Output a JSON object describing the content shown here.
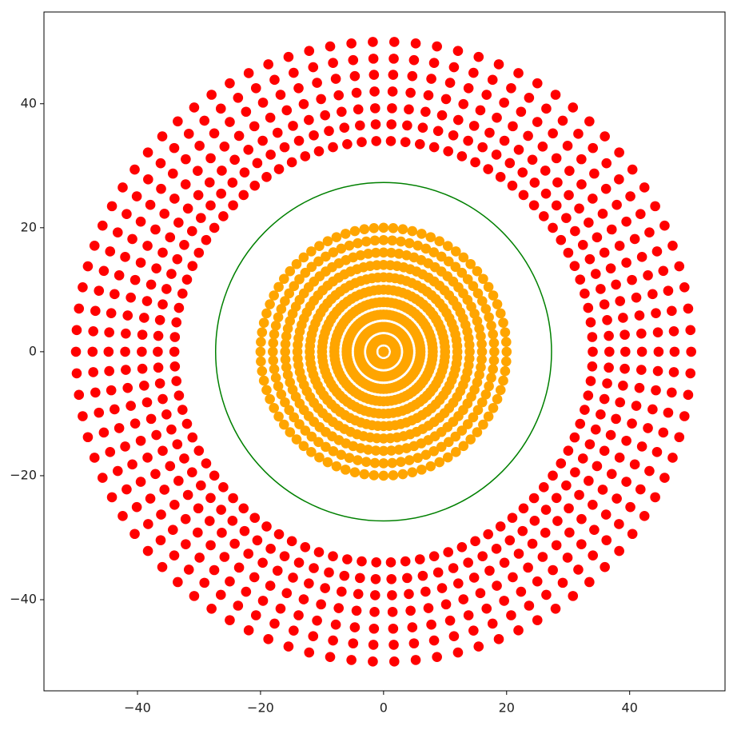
{
  "chart_data": {
    "type": "polar-scatter",
    "xlim": [
      -55.2,
      55.5
    ],
    "ylim": [
      -54.7,
      54.8
    ],
    "xticks": [
      {
        "value": -40,
        "label": "−40"
      },
      {
        "value": -20,
        "label": "−20"
      },
      0,
      20,
      40
    ],
    "yticks": [
      {
        "value": -40,
        "label": "−40"
      },
      {
        "value": -20,
        "label": "−20"
      },
      0,
      20,
      40
    ],
    "series": [
      {
        "color": "#ff0000",
        "r": [
          34,
          36.7,
          39.3,
          42,
          44.7,
          47.3,
          50
        ],
        "theta": [
          0,
          4,
          8,
          12,
          16,
          20,
          24,
          28,
          32,
          36,
          40,
          44,
          48,
          52,
          56,
          60,
          64,
          68,
          72,
          76,
          80,
          84,
          88,
          92,
          96,
          100,
          104,
          108,
          112,
          116,
          120,
          124,
          128,
          132,
          136,
          140,
          144,
          148,
          152,
          156,
          160,
          164,
          168,
          172,
          176,
          180,
          184,
          188,
          192,
          196,
          200,
          204,
          208,
          212,
          216,
          220,
          224,
          228,
          232,
          236,
          240,
          244,
          248,
          252,
          256,
          260,
          264,
          268,
          272,
          276,
          280,
          284,
          288,
          292,
          296,
          300,
          304,
          308,
          312,
          316,
          320,
          324,
          328,
          332,
          336,
          340,
          344,
          348,
          352,
          356
        ]
      },
      {
        "color": "#ffa500",
        "r": [
          0,
          2,
          4,
          6,
          8,
          10,
          12,
          14,
          16,
          18,
          20
        ],
        "theta": [
          0,
          4.5,
          9,
          13.5,
          18,
          22.5,
          27,
          31.5,
          36,
          40.5,
          45,
          49.5,
          54,
          58.5,
          63,
          67.5,
          72,
          76.5,
          81,
          85.5,
          90,
          94.5,
          99,
          103.5,
          108,
          112.5,
          117,
          121.5,
          126,
          130.5,
          135,
          139.5,
          144,
          148.5,
          153,
          157.5,
          162,
          166.5,
          171,
          175.5,
          180,
          184.5,
          189,
          193.5,
          198,
          202.5,
          207,
          211.5,
          216,
          220.5,
          225,
          229.5,
          234,
          238.5,
          243,
          247.5,
          252,
          256.5,
          261,
          265.5,
          270,
          274.5,
          279,
          283.5,
          288,
          292.5,
          297,
          301.5,
          306,
          310.5,
          315,
          319.5,
          324,
          328.5,
          333,
          337.5,
          342,
          346.5,
          351,
          355.5
        ]
      }
    ],
    "circles": [
      {
        "radius": 27.3,
        "color": "#008000"
      }
    ]
  }
}
